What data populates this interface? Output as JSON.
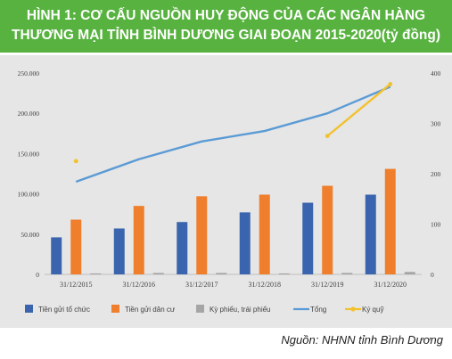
{
  "title_line1": "HÌNH 1: CƠ CẤU NGUỒN HUY ĐỘNG CỦA CÁC NGÂN HÀNG",
  "title_line2": "THƯƠNG MẠI TỈNH BÌNH DƯƠNG GIAI ĐOẠN 2015-2020(tỷ đồng)",
  "source": "Nguồn: NHNN tỉnh Bình Dương",
  "colors": {
    "title_bg": "#57b23f",
    "plot_bg": "#e6e6e6",
    "blue_bar": "#3a64ad",
    "orange_bar": "#ef7e2d",
    "gray_bar": "#a5a5a5",
    "line_blue": "#5b9bd5",
    "line_gold": "#f2c12e"
  },
  "chart_data": {
    "type": "bar",
    "categories": [
      "31/12/2015",
      "31/12/2016",
      "31/12/2017",
      "31/12/2018",
      "31/12/2019",
      "31/12/2020"
    ],
    "left_axis": {
      "min": 0,
      "max": 250000,
      "ticks": [
        "0",
        "50.000",
        "100.000",
        "150.000",
        "200.000",
        "250.000"
      ],
      "tick_values": [
        0,
        50000,
        100000,
        150000,
        200000,
        250000
      ]
    },
    "right_axis": {
      "min": 0,
      "max": 400,
      "ticks": [
        "0",
        "100",
        "200",
        "300",
        "400"
      ],
      "tick_values": [
        0,
        100,
        200,
        300,
        400
      ]
    },
    "series": [
      {
        "name": "Tiền gửi tổ chức",
        "type": "bar",
        "axis": "left",
        "color": "#3a64ad",
        "values": [
          46000,
          57000,
          65000,
          77000,
          89000,
          99000
        ]
      },
      {
        "name": "Tiền gửi dân cư",
        "type": "bar",
        "axis": "left",
        "color": "#ef7e2d",
        "values": [
          68000,
          85000,
          97000,
          99000,
          110000,
          131000
        ]
      },
      {
        "name": "Kỳ phiếu, trái phiếu",
        "type": "bar",
        "axis": "left",
        "color": "#a5a5a5",
        "values": [
          1200,
          1800,
          1800,
          1200,
          1800,
          3000
        ]
      },
      {
        "name": "Tổng",
        "type": "line",
        "axis": "left",
        "color": "#5b9bd5",
        "values": [
          115000,
          143000,
          165000,
          178000,
          200000,
          233000
        ]
      },
      {
        "name": "Ký quỹ",
        "type": "line-marker",
        "axis": "right",
        "color": "#f2c12e",
        "values": [
          225,
          null,
          null,
          null,
          275,
          378
        ]
      }
    ],
    "grid": false,
    "legend_position": "bottom"
  }
}
